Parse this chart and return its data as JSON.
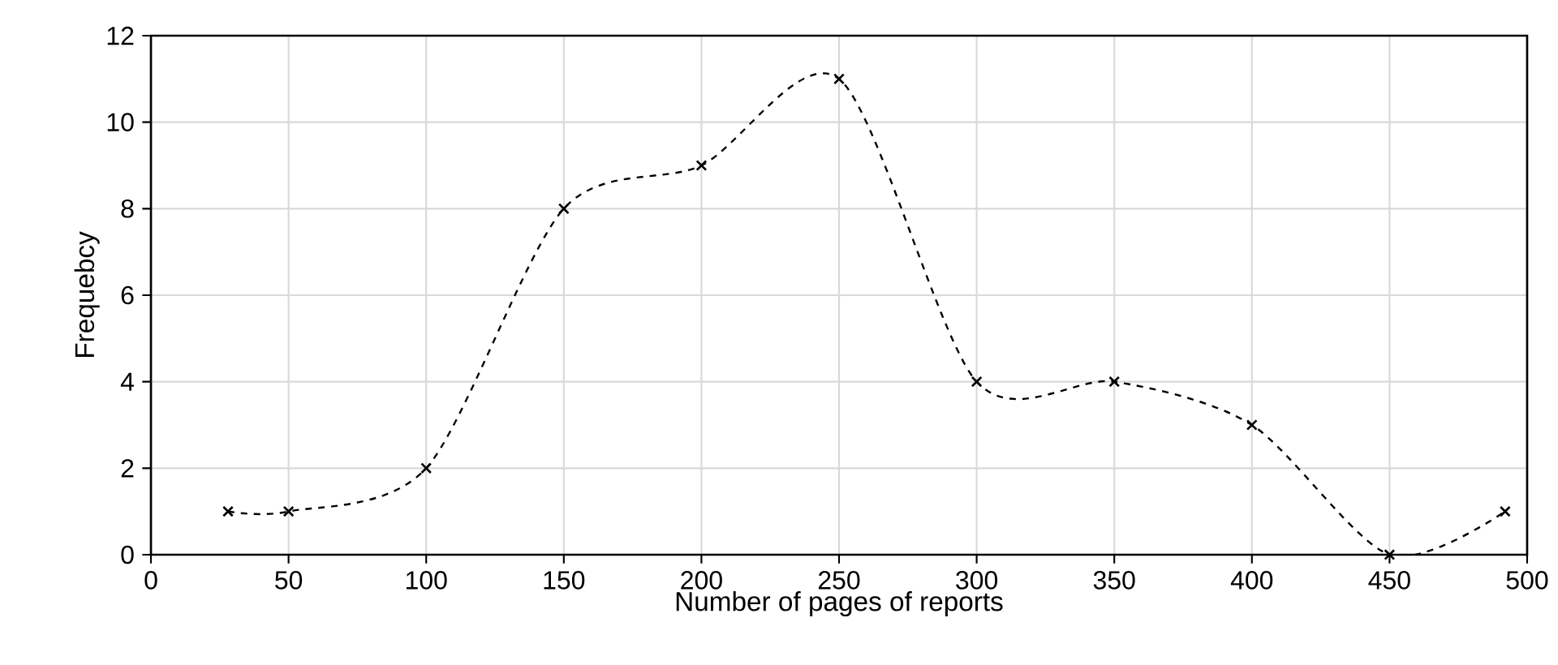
{
  "chart_data": {
    "type": "line",
    "xlabel": "Number of pages of reports",
    "ylabel": "Frequebcy",
    "x": [
      28,
      50,
      100,
      150,
      200,
      250,
      300,
      350,
      400,
      450,
      492
    ],
    "series": [
      {
        "color": "#000000",
        "values": [
          1,
          1,
          2,
          8,
          9,
          11,
          4,
          4,
          3,
          0,
          1
        ]
      }
    ],
    "xlim": [
      0,
      500
    ],
    "xticks": [
      0,
      50,
      100,
      150,
      200,
      250,
      300,
      350,
      400,
      450,
      500
    ],
    "ylim": [
      0,
      12
    ],
    "yticks": [
      0,
      2,
      4,
      6,
      8,
      10,
      12
    ],
    "grid": true,
    "marker": "cross",
    "line_style": "dashed"
  }
}
